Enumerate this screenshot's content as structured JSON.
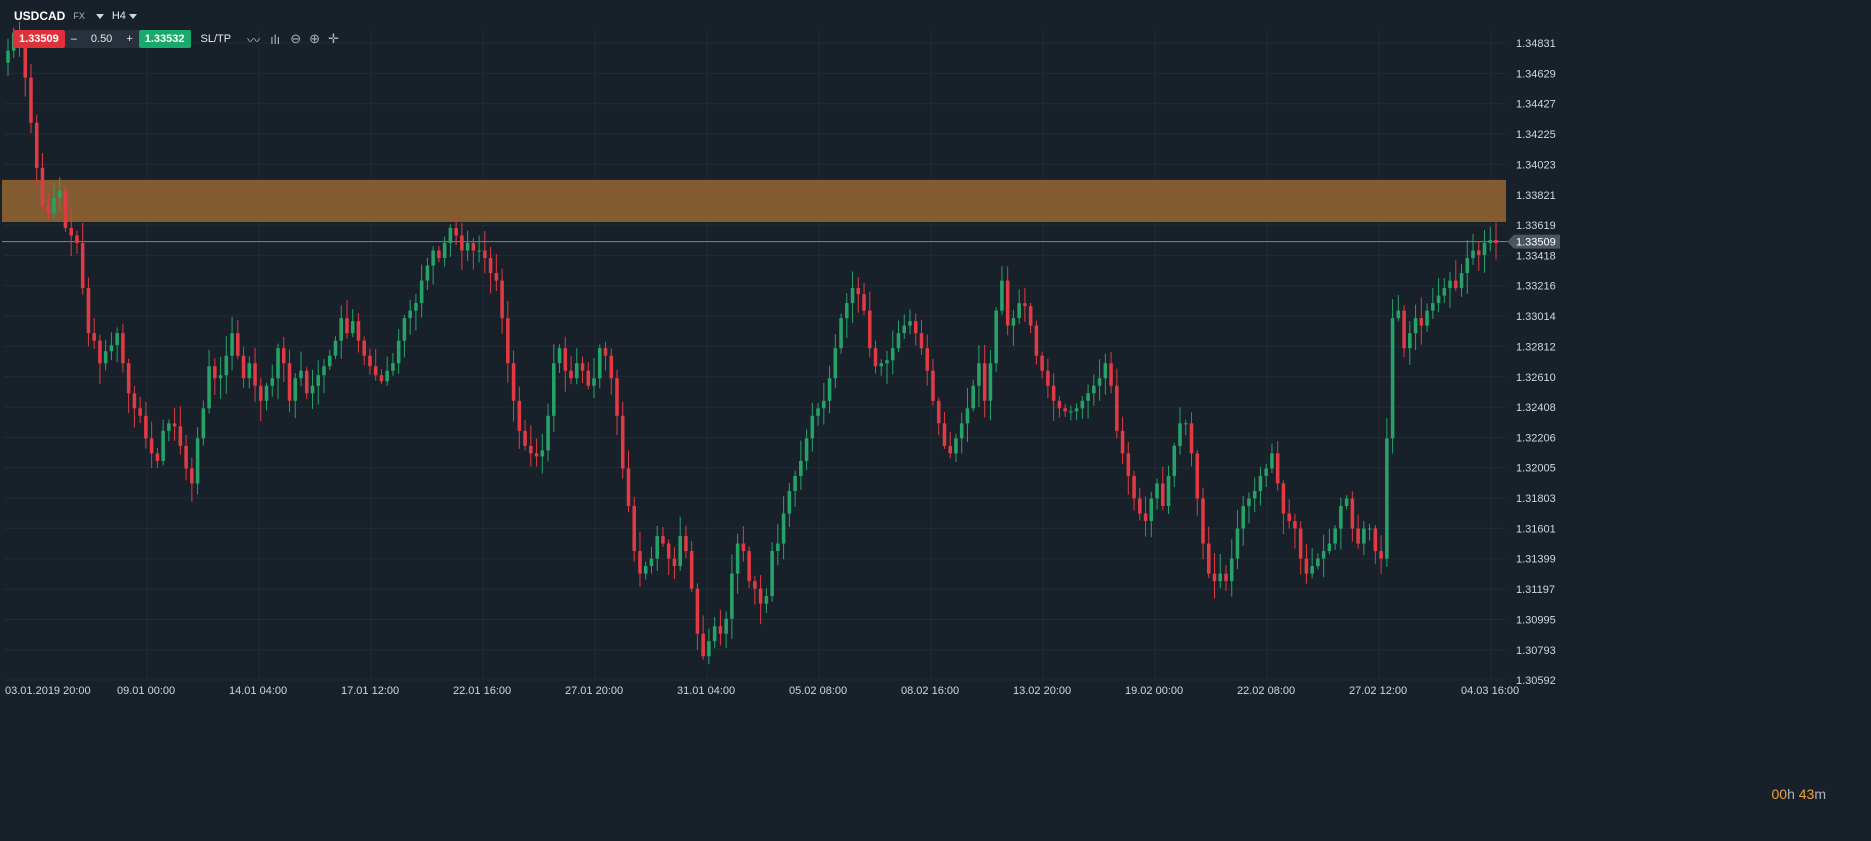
{
  "header": {
    "symbol": "USDCAD",
    "market": "FX",
    "timeframe": "H4"
  },
  "trade": {
    "sell_price": "1.33509",
    "minus": "–",
    "lot": "0.50",
    "plus": "+",
    "buy_price": "1.33532",
    "sltp": "SL/TP"
  },
  "tools": [
    {
      "icon": "line-chart-icon"
    },
    {
      "icon": "indicators-icon"
    },
    {
      "icon": "zoom-out-icon"
    },
    {
      "icon": "zoom-in-icon"
    },
    {
      "icon": "crosshair-icon"
    }
  ],
  "countdown": {
    "hours": "00",
    "h_unit": "h ",
    "minutes": "43",
    "m_unit": "m"
  },
  "colors": {
    "background": "#18212a",
    "up": "#26a269",
    "down": "#e03a44",
    "zone": "#8d6232",
    "current_price_line": "#8ea0ad"
  },
  "chart_data": {
    "type": "candlestick",
    "symbol": "USDCAD",
    "timeframe": "H4",
    "y_ticks": [
      "1.34831",
      "1.34629",
      "1.34427",
      "1.34225",
      "1.34023",
      "1.33821",
      "1.33619",
      "1.33418",
      "1.33216",
      "1.33014",
      "1.32812",
      "1.32610",
      "1.32408",
      "1.32206",
      "1.32005",
      "1.31803",
      "1.31601",
      "1.31399",
      "1.31197",
      "1.30995",
      "1.30793",
      "1.30592"
    ],
    "ylim": [
      1.30592,
      1.34932
    ],
    "x_ticks": [
      "03.01.2019 20:00",
      "09.01 00:00",
      "14.01 04:00",
      "17.01 12:00",
      "22.01 16:00",
      "27.01 20:00",
      "31.01 04:00",
      "05.02 08:00",
      "08.02 16:00",
      "13.02 20:00",
      "19.02 00:00",
      "22.02 08:00",
      "27.02 12:00",
      "04.03 16:00"
    ],
    "current_price": 1.33509,
    "current_price_label": "1.33509",
    "zone": {
      "low": 1.3364,
      "high": 1.3392
    },
    "series_close": [
      1.3478,
      1.349,
      1.3482,
      1.346,
      1.343,
      1.34,
      1.3375,
      1.337,
      1.338,
      1.3385,
      1.336,
      1.3355,
      1.335,
      1.332,
      1.329,
      1.3285,
      1.327,
      1.3278,
      1.3282,
      1.329,
      1.327,
      1.325,
      1.324,
      1.3235,
      1.322,
      1.321,
      1.3205,
      1.3225,
      1.323,
      1.3228,
      1.3215,
      1.32,
      1.319,
      1.322,
      1.324,
      1.3268,
      1.326,
      1.3262,
      1.3275,
      1.329,
      1.3275,
      1.326,
      1.327,
      1.3255,
      1.3245,
      1.3255,
      1.326,
      1.328,
      1.327,
      1.3245,
      1.326,
      1.3265,
      1.325,
      1.3255,
      1.3262,
      1.3268,
      1.3275,
      1.3285,
      1.33,
      1.329,
      1.3298,
      1.3285,
      1.3275,
      1.3268,
      1.3262,
      1.3258,
      1.3265,
      1.327,
      1.3285,
      1.33,
      1.3305,
      1.331,
      1.3325,
      1.3335,
      1.3345,
      1.334,
      1.335,
      1.336,
      1.3355,
      1.3345,
      1.335,
      1.3345,
      1.3345,
      1.334,
      1.333,
      1.3325,
      1.33,
      1.327,
      1.3245,
      1.3225,
      1.3215,
      1.321,
      1.3208,
      1.3212,
      1.3235,
      1.327,
      1.328,
      1.3265,
      1.326,
      1.327,
      1.3265,
      1.3255,
      1.326,
      1.328,
      1.3275,
      1.326,
      1.3235,
      1.32,
      1.3175,
      1.3145,
      1.313,
      1.3135,
      1.314,
      1.3155,
      1.315,
      1.314,
      1.3135,
      1.3155,
      1.3145,
      1.312,
      1.309,
      1.3075,
      1.3085,
      1.3095,
      1.309,
      1.31,
      1.313,
      1.315,
      1.3145,
      1.3125,
      1.312,
      1.311,
      1.3115,
      1.3145,
      1.315,
      1.317,
      1.3185,
      1.3195,
      1.3205,
      1.322,
      1.3235,
      1.324,
      1.3245,
      1.326,
      1.328,
      1.33,
      1.331,
      1.332,
      1.3316,
      1.3305,
      1.328,
      1.3268,
      1.327,
      1.3272,
      1.328,
      1.329,
      1.3295,
      1.3298,
      1.329,
      1.328,
      1.3265,
      1.3245,
      1.323,
      1.3215,
      1.321,
      1.322,
      1.323,
      1.324,
      1.3255,
      1.327,
      1.3245,
      1.327,
      1.3305,
      1.3325,
      1.3295,
      1.33,
      1.331,
      1.3308,
      1.3295,
      1.3275,
      1.3265,
      1.3255,
      1.3245,
      1.324,
      1.3238,
      1.3238,
      1.324,
      1.3245,
      1.325,
      1.3255,
      1.326,
      1.327,
      1.3255,
      1.3225,
      1.321,
      1.3195,
      1.318,
      1.317,
      1.3165,
      1.318,
      1.319,
      1.3175,
      1.3195,
      1.3215,
      1.323,
      1.323,
      1.321,
      1.318,
      1.315,
      1.313,
      1.3125,
      1.313,
      1.3125,
      1.314,
      1.316,
      1.3175,
      1.318,
      1.3185,
      1.3195,
      1.32,
      1.321,
      1.319,
      1.317,
      1.3165,
      1.316,
      1.314,
      1.313,
      1.3135,
      1.314,
      1.3145,
      1.315,
      1.316,
      1.3175,
      1.318,
      1.316,
      1.315,
      1.316,
      1.316,
      1.3145,
      1.314,
      1.322,
      1.33,
      1.3305,
      1.328,
      1.329,
      1.33,
      1.3295,
      1.3305,
      1.331,
      1.3315,
      1.332,
      1.3325,
      1.332,
      1.333,
      1.334,
      1.3345,
      1.3342,
      1.335,
      1.3352,
      1.335
    ]
  }
}
